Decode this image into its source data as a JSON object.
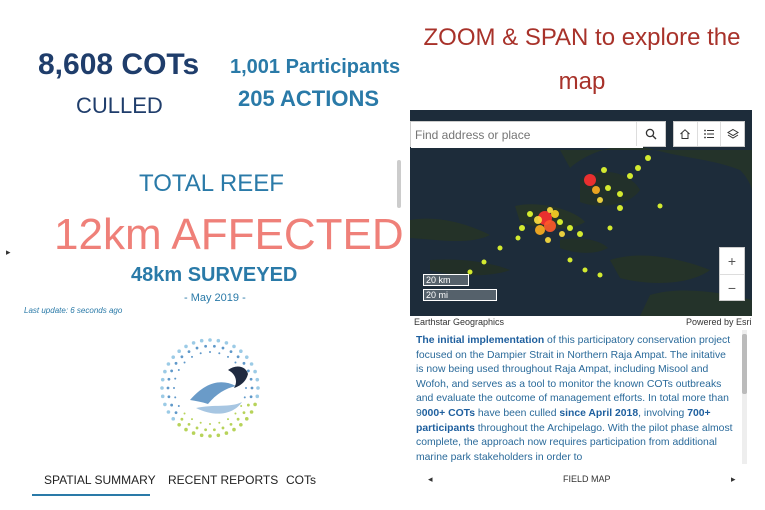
{
  "stats": {
    "cots_culled_value": "8,608 COTs",
    "cots_culled_label": "CULLED",
    "participants": "1,001 Participants",
    "actions": "205 ACTIONS",
    "total_reef_label": "TOTAL REEF",
    "affected": "12km AFFECTED",
    "surveyed": "48km SURVEYED",
    "date": "- May 2019 -",
    "last_update": "Last update: 6 seconds ago"
  },
  "tabs": [
    {
      "label": "SPATIAL SUMMARY",
      "active": true
    },
    {
      "label": "RECENT REPORTS"
    },
    {
      "label": "COTs"
    }
  ],
  "map": {
    "title_line1": "ZOOM & SPAN to explore the",
    "title_line2": "map",
    "search_placeholder": "Find address or place",
    "scale_km": "20 km",
    "scale_mi": "20 mi",
    "attribution_left": "Earthstar Geographics",
    "attribution_right": "Powered by Esri",
    "zoom_in": "+",
    "zoom_out": "−",
    "icons": [
      "search-icon",
      "home-icon",
      "list-icon",
      "layers-icon"
    ]
  },
  "description": {
    "p1_bold": "The initial implementation",
    "p1_rest": " of this participatory conservation project focused on the Dampier Strait in Northern Raja Ampat. The initative is now being used throughout Raja Ampat, including Misool and Wofoh, and serves as a tool to monitor the known COTs outbreaks and evaluate the outcome of management efforts.  In total more than 9",
    "cots_bold": "000+ COTs",
    "mid1": " have been culled ",
    "since_bold": "since April 2018",
    "mid2": ", involving ",
    "participants_bold": "700+ participants",
    "rest": " throughout the Archipelago.  With the pilot phase almost complete, the approach now requires participation from additional marine park stakeholders in order to"
  },
  "footer": {
    "prev": "◂",
    "label": "FIELD MAP",
    "next": "▸",
    "left_toggle": "▸"
  },
  "colors": {
    "navy": "#1f3d6b",
    "blue": "#2a7aa8",
    "coral": "#ef8079",
    "title_red": "#a8322a"
  }
}
